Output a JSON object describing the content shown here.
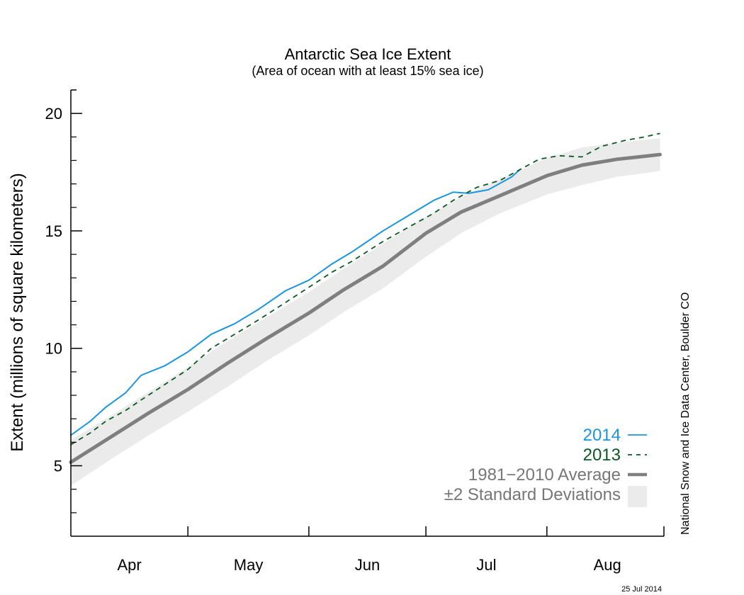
{
  "chart_data": {
    "type": "line",
    "title": "Antarctic Sea Ice Extent",
    "subtitle": "(Area of ocean with at least 15% sea ice)",
    "xlabel": "",
    "ylabel": "Extent (millions of square kilometers)",
    "x_unit": "days since Apr 1",
    "xlim": [
      0,
      152
    ],
    "ylim": [
      2,
      21
    ],
    "yticks": [
      5,
      10,
      15,
      20
    ],
    "yticks_minor": [
      3,
      4,
      6,
      7,
      8,
      9,
      11,
      12,
      13,
      14,
      16,
      17,
      18,
      19
    ],
    "xticks": [
      {
        "label": "Apr",
        "day": 15
      },
      {
        "label": "May",
        "day": 45.5
      },
      {
        "label": "Jun",
        "day": 76
      },
      {
        "label": "Jul",
        "day": 106.5
      },
      {
        "label": "Aug",
        "day": 137.5
      }
    ],
    "month_boundaries": [
      30,
      61,
      91,
      122,
      152
    ],
    "grid": false,
    "legend_position": "bottom-right",
    "credit": "National Snow and Ice Data Center, Boulder CO",
    "date_stamp": "25 Jul 2014",
    "series": [
      {
        "name": "2014",
        "color": "#1a95e0",
        "style": "solid",
        "x": [
          0,
          5,
          9,
          14,
          18,
          24,
          30,
          36,
          42,
          48,
          55,
          61,
          67,
          72,
          80,
          87,
          93,
          98,
          102,
          107,
          113,
          115
        ],
        "y": [
          6.3,
          6.9,
          7.5,
          8.1,
          8.85,
          9.25,
          9.85,
          10.6,
          11.05,
          11.65,
          12.45,
          12.9,
          13.6,
          14.1,
          15.0,
          15.7,
          16.3,
          16.65,
          16.6,
          16.75,
          17.3,
          17.6
        ]
      },
      {
        "name": "2013",
        "color": "#0b5a23",
        "style": "dashed",
        "x": [
          0,
          5,
          9,
          14,
          18,
          24,
          30,
          36,
          42,
          48,
          55,
          61,
          67,
          72,
          80,
          87,
          93,
          98,
          104,
          110,
          115,
          120,
          125,
          131,
          136,
          142,
          147,
          151
        ],
        "y": [
          5.9,
          6.4,
          6.9,
          7.35,
          7.8,
          8.45,
          9.1,
          10.0,
          10.6,
          11.2,
          11.95,
          12.6,
          13.25,
          13.7,
          14.55,
          15.2,
          15.75,
          16.3,
          16.85,
          17.15,
          17.6,
          18.05,
          18.2,
          18.15,
          18.6,
          18.85,
          19.0,
          19.15
        ]
      },
      {
        "name": "1981−2010 Average",
        "color": "#7f7f7f",
        "style": "thick",
        "x": [
          0,
          10,
          20,
          30,
          40,
          50,
          61,
          70,
          80,
          91,
          100,
          110,
          122,
          131,
          140,
          151
        ],
        "y": [
          5.15,
          6.2,
          7.25,
          8.25,
          9.35,
          10.4,
          11.5,
          12.5,
          13.5,
          14.9,
          15.8,
          16.5,
          17.35,
          17.8,
          18.05,
          18.25
        ]
      }
    ],
    "band": {
      "name": "±2 Standard Deviations",
      "color": "#ebebeb",
      "x": [
        0,
        10,
        20,
        30,
        40,
        50,
        61,
        70,
        80,
        91,
        100,
        110,
        122,
        131,
        140,
        151
      ],
      "upper": [
        6.1,
        7.1,
        8.15,
        9.2,
        10.3,
        11.3,
        12.4,
        13.4,
        14.45,
        15.6,
        16.45,
        17.2,
        18.1,
        18.55,
        18.75,
        18.95
      ],
      "lower": [
        4.15,
        5.25,
        6.3,
        7.3,
        8.35,
        9.45,
        10.55,
        11.55,
        12.55,
        13.9,
        14.9,
        15.75,
        16.55,
        16.95,
        17.3,
        17.55
      ]
    },
    "legend": [
      {
        "label": "2014",
        "color": "#1a95e0",
        "marker": "solid-line"
      },
      {
        "label": "2013",
        "color": "#0b5a23",
        "marker": "dashed-line"
      },
      {
        "label": "1981−2010 Average",
        "color": "#7f7f7f",
        "marker": "thick-line"
      },
      {
        "label": "±2 Standard Deviations",
        "color": "#7f7f7f",
        "marker": "band-swatch"
      }
    ]
  }
}
